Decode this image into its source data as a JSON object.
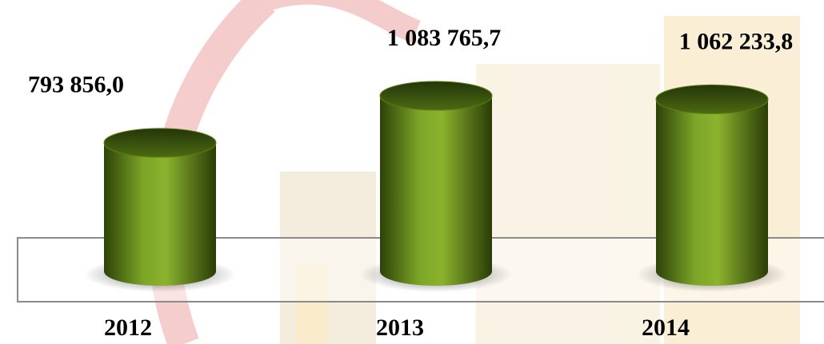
{
  "chart_data": {
    "type": "bar",
    "categories": [
      "2012",
      "2013",
      "2014"
    ],
    "values": [
      793856.0,
      1083765.7,
      1062233.8
    ],
    "value_labels": [
      "793 856,0",
      "1 083 765,7",
      "1 062 233,8"
    ],
    "color": "#5a7d12"
  }
}
